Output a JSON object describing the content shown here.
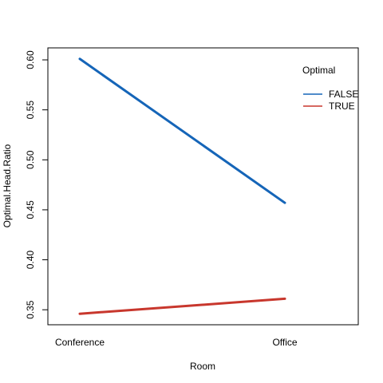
{
  "chart_data": {
    "type": "line",
    "title": "",
    "xlabel": "Room",
    "ylabel": "Optimal.Head.Ratio",
    "categories": [
      "Conference",
      "Office"
    ],
    "ylim": [
      0.335,
      0.612
    ],
    "yticks": [
      0.35,
      0.4,
      0.45,
      0.5,
      0.55,
      0.6
    ],
    "ytick_labels": [
      "0.35",
      "0.40",
      "0.45",
      "0.50",
      "0.55",
      "0.60"
    ],
    "series": [
      {
        "name": "FALSE",
        "values": [
          0.601,
          0.457
        ],
        "color": "#1565b8"
      },
      {
        "name": "TRUE",
        "values": [
          0.346,
          0.361
        ],
        "color": "#c8372d"
      }
    ],
    "legend": {
      "title": "Optimal",
      "position": "top-right"
    },
    "grid": false
  }
}
